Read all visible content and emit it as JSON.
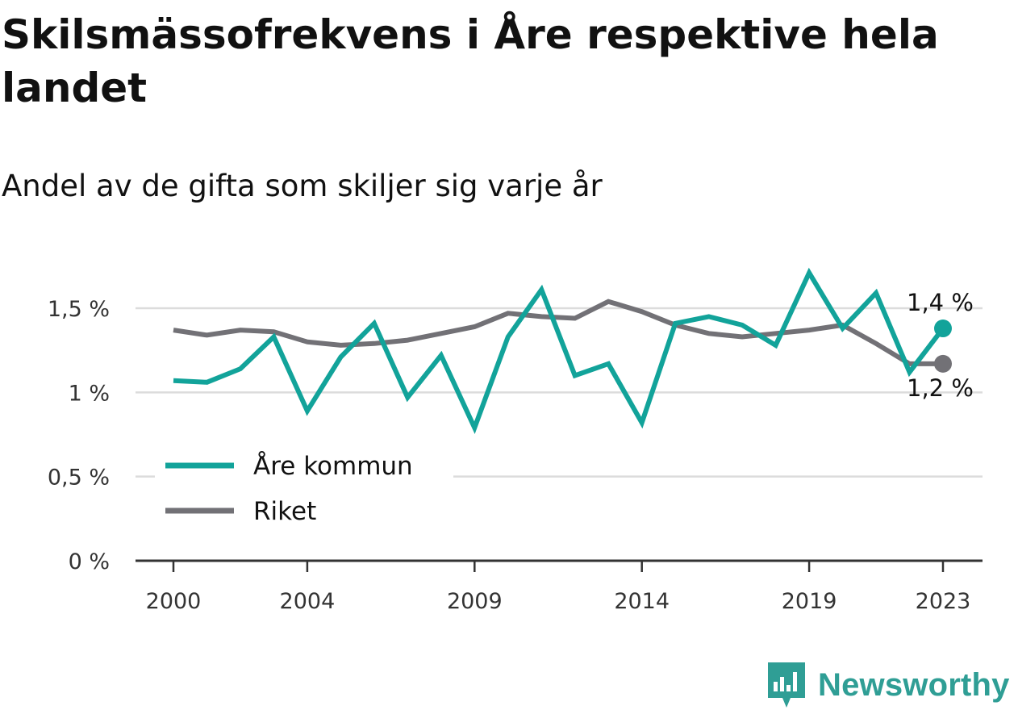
{
  "header": {
    "title": "Skilsmässofrekvens i Åre respektive hela landet",
    "subtitle": "Andel av de gifta som skiljer sig varje år"
  },
  "brand": {
    "name": "Newsworthy",
    "icon": "newsworthy-logo-icon",
    "color": "#2f9e95"
  },
  "chart_data": {
    "type": "line",
    "x": [
      2000,
      2001,
      2002,
      2003,
      2004,
      2005,
      2006,
      2007,
      2008,
      2009,
      2010,
      2011,
      2012,
      2013,
      2014,
      2015,
      2016,
      2017,
      2018,
      2019,
      2020,
      2021,
      2022,
      2023
    ],
    "xticks": [
      2000,
      2004,
      2009,
      2014,
      2019,
      2023
    ],
    "xtick_labels": [
      "2000",
      "2004",
      "2009",
      "2014",
      "2019",
      "2023"
    ],
    "yticks": [
      0,
      0.5,
      1,
      1.5
    ],
    "ytick_labels": [
      "0 %",
      "0,5 %",
      "1 %",
      "1,5 %"
    ],
    "ylim": [
      0,
      1.7
    ],
    "grid": true,
    "legend_position": "bottom-left",
    "series": [
      {
        "name": "Åre kommun",
        "color": "#12a39a",
        "values": [
          1.07,
          1.06,
          1.14,
          1.33,
          0.89,
          1.21,
          1.41,
          0.97,
          1.22,
          0.79,
          1.33,
          1.61,
          1.1,
          1.17,
          0.82,
          1.41,
          1.45,
          1.4,
          1.28,
          1.71,
          1.38,
          1.59,
          1.12,
          1.38
        ],
        "end_label": "1,4 %"
      },
      {
        "name": "Riket",
        "color": "#727176",
        "values": [
          1.37,
          1.34,
          1.37,
          1.36,
          1.3,
          1.28,
          1.29,
          1.31,
          1.35,
          1.39,
          1.47,
          1.45,
          1.44,
          1.54,
          1.48,
          1.4,
          1.35,
          1.33,
          1.35,
          1.37,
          1.4,
          1.29,
          1.17,
          1.17
        ],
        "end_label": "1,2 %"
      }
    ]
  }
}
